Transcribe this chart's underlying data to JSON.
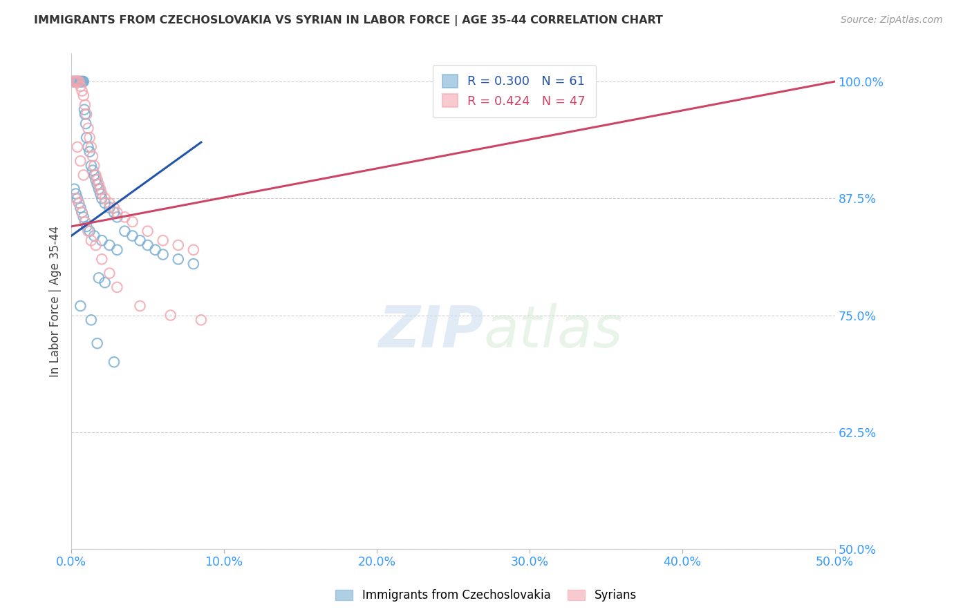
{
  "title": "IMMIGRANTS FROM CZECHOSLOVAKIA VS SYRIAN IN LABOR FORCE | AGE 35-44 CORRELATION CHART",
  "source": "Source: ZipAtlas.com",
  "ylabel_ticks": [
    100.0,
    87.5,
    75.0,
    62.5,
    50.0
  ],
  "xlabel_ticks": [
    0.0,
    10.0,
    20.0,
    30.0,
    40.0,
    50.0
  ],
  "xmin": 0.0,
  "xmax": 50.0,
  "ymin": 50.0,
  "ymax": 103.0,
  "legend_blue_r": "0.300",
  "legend_blue_n": "61",
  "legend_pink_r": "0.424",
  "legend_pink_n": "47",
  "color_blue": "#7BAFD4",
  "color_pink": "#F4A7B0",
  "color_blue_line": "#2255AA",
  "color_pink_line": "#CC4466",
  "color_axis_labels": "#3399FF",
  "color_title": "#333333",
  "blue_x": [
    0.1,
    0.15,
    0.2,
    0.25,
    0.3,
    0.35,
    0.4,
    0.45,
    0.5,
    0.55,
    0.6,
    0.65,
    0.7,
    0.75,
    0.8,
    0.85,
    0.9,
    0.95,
    1.0,
    1.1,
    1.2,
    1.3,
    1.4,
    1.5,
    1.6,
    1.7,
    1.8,
    1.9,
    2.0,
    2.2,
    2.5,
    2.8,
    3.0,
    3.5,
    4.0,
    4.5,
    5.0,
    5.5,
    6.0,
    7.0,
    8.0,
    0.2,
    0.3,
    0.4,
    0.5,
    0.6,
    0.7,
    0.8,
    0.9,
    1.0,
    1.2,
    1.5,
    2.0,
    2.5,
    3.0,
    1.8,
    2.2,
    0.6,
    1.3,
    1.7,
    2.8
  ],
  "blue_y": [
    100.0,
    100.0,
    100.0,
    100.0,
    100.0,
    100.0,
    100.0,
    100.0,
    100.0,
    100.0,
    100.0,
    100.0,
    100.0,
    100.0,
    100.0,
    97.0,
    96.5,
    95.5,
    94.0,
    93.0,
    92.5,
    91.0,
    90.5,
    90.0,
    89.5,
    89.0,
    88.5,
    88.0,
    87.5,
    87.0,
    86.5,
    86.0,
    85.5,
    84.0,
    83.5,
    83.0,
    82.5,
    82.0,
    81.5,
    81.0,
    80.5,
    88.5,
    88.0,
    87.5,
    87.0,
    86.5,
    86.0,
    85.5,
    85.0,
    84.5,
    84.0,
    83.5,
    83.0,
    82.5,
    82.0,
    79.0,
    78.5,
    76.0,
    74.5,
    72.0,
    70.0
  ],
  "pink_x": [
    0.1,
    0.2,
    0.3,
    0.4,
    0.5,
    0.6,
    0.7,
    0.8,
    0.9,
    1.0,
    1.1,
    1.2,
    1.3,
    1.4,
    1.5,
    1.6,
    1.7,
    1.8,
    1.9,
    2.0,
    2.2,
    2.5,
    2.8,
    3.0,
    3.5,
    4.0,
    5.0,
    6.0,
    7.0,
    8.0,
    0.3,
    0.5,
    0.7,
    0.9,
    1.1,
    1.3,
    1.6,
    2.0,
    2.5,
    3.0,
    4.5,
    6.5,
    8.5,
    30.0,
    0.4,
    0.6,
    0.8
  ],
  "pink_y": [
    100.0,
    100.0,
    100.0,
    100.0,
    100.0,
    99.5,
    99.0,
    98.5,
    97.5,
    96.5,
    95.0,
    94.0,
    93.0,
    92.0,
    91.0,
    90.0,
    89.5,
    89.0,
    88.5,
    88.0,
    87.5,
    87.0,
    86.5,
    86.0,
    85.5,
    85.0,
    84.0,
    83.0,
    82.5,
    82.0,
    87.5,
    87.0,
    86.0,
    85.0,
    84.0,
    83.0,
    82.5,
    81.0,
    79.5,
    78.0,
    76.0,
    75.0,
    74.5,
    100.0,
    93.0,
    91.5,
    90.0
  ],
  "blue_trendline_x": [
    0.0,
    8.5
  ],
  "blue_trendline_y": [
    83.5,
    93.5
  ],
  "pink_trendline_x": [
    0.0,
    50.0
  ],
  "pink_trendline_y": [
    84.5,
    100.0
  ]
}
